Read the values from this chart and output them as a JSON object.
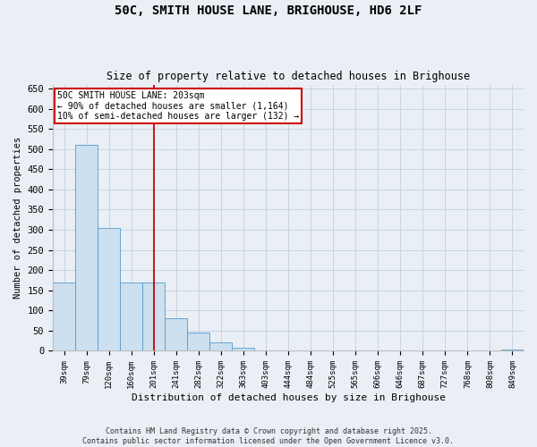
{
  "title": "50C, SMITH HOUSE LANE, BRIGHOUSE, HD6 2LF",
  "subtitle": "Size of property relative to detached houses in Brighouse",
  "xlabel": "Distribution of detached houses by size in Brighouse",
  "ylabel": "Number of detached properties",
  "categories": [
    "39sqm",
    "79sqm",
    "120sqm",
    "160sqm",
    "201sqm",
    "241sqm",
    "282sqm",
    "322sqm",
    "363sqm",
    "403sqm",
    "444sqm",
    "484sqm",
    "525sqm",
    "565sqm",
    "606sqm",
    "646sqm",
    "687sqm",
    "727sqm",
    "768sqm",
    "808sqm",
    "849sqm"
  ],
  "values": [
    170,
    510,
    305,
    170,
    170,
    80,
    45,
    20,
    7,
    0,
    0,
    0,
    0,
    0,
    0,
    0,
    0,
    0,
    0,
    0,
    3
  ],
  "bar_color": "#cce0f0",
  "bar_edge_color": "#5599cc",
  "grid_color": "#c5d5e5",
  "background_color": "#eaeff5",
  "annotation_text": "50C SMITH HOUSE LANE: 203sqm\n← 90% of detached houses are smaller (1,164)\n10% of semi-detached houses are larger (132) →",
  "annotation_box_facecolor": "#ffffff",
  "annotation_box_edge": "#cc0000",
  "vline_x": 4,
  "vline_color": "#cc0000",
  "footer_line1": "Contains HM Land Registry data © Crown copyright and database right 2025.",
  "footer_line2": "Contains public sector information licensed under the Open Government Licence v3.0.",
  "ylim": [
    0,
    660
  ],
  "yticks": [
    0,
    50,
    100,
    150,
    200,
    250,
    300,
    350,
    400,
    450,
    500,
    550,
    600,
    650
  ]
}
